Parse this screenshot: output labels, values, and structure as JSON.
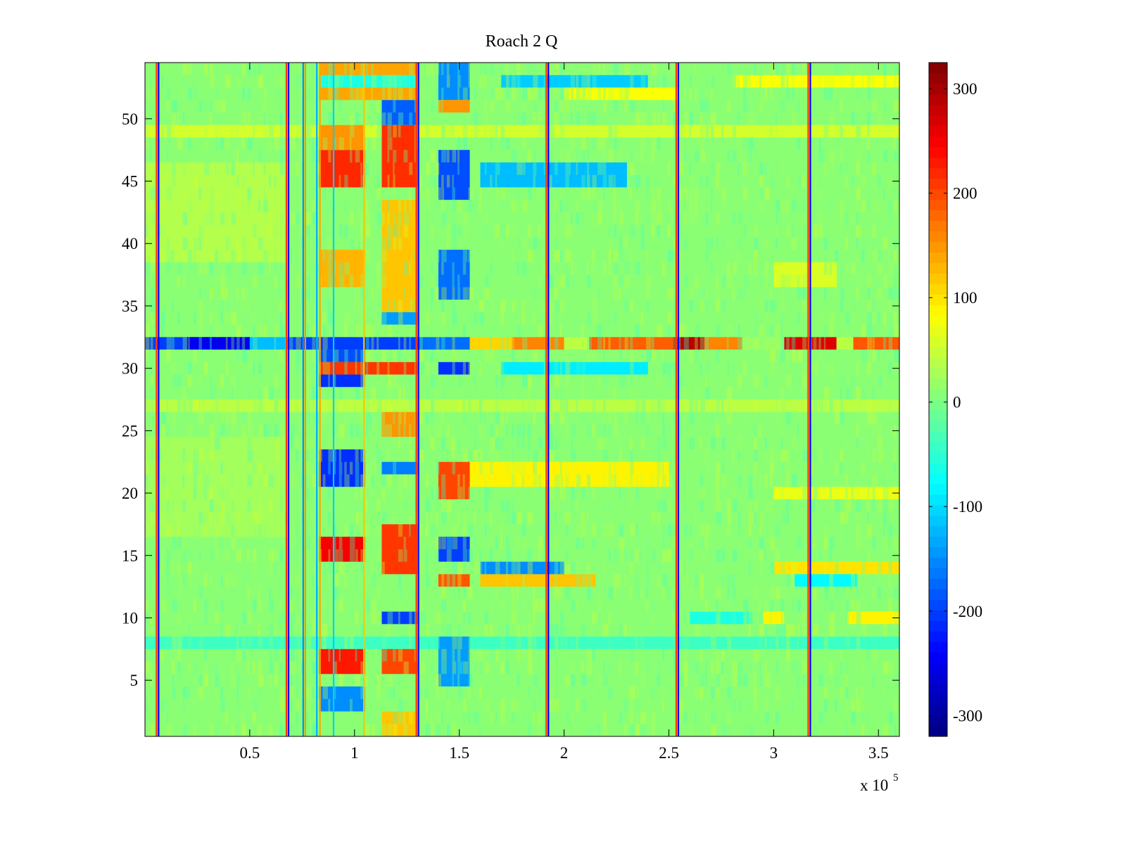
{
  "chart_data": {
    "type": "heatmap",
    "title": "Roach 2 Q",
    "xlabel": "",
    "ylabel": "",
    "x_exponent_label": "x 10",
    "x_exponent_power": "5",
    "xlim": [
      0,
      360000
    ],
    "ylim": [
      0.5,
      54.5
    ],
    "rows": 54,
    "x_ticks": [
      {
        "value": 50000,
        "label": "0.5"
      },
      {
        "value": 100000,
        "label": "1"
      },
      {
        "value": 150000,
        "label": "1.5"
      },
      {
        "value": 200000,
        "label": "2"
      },
      {
        "value": 250000,
        "label": "2.5"
      },
      {
        "value": 300000,
        "label": "3"
      },
      {
        "value": 350000,
        "label": "3.5"
      }
    ],
    "y_ticks": [
      {
        "value": 5,
        "label": "5"
      },
      {
        "value": 10,
        "label": "10"
      },
      {
        "value": 15,
        "label": "15"
      },
      {
        "value": 20,
        "label": "20"
      },
      {
        "value": 25,
        "label": "25"
      },
      {
        "value": 30,
        "label": "30"
      },
      {
        "value": 35,
        "label": "35"
      },
      {
        "value": 40,
        "label": "40"
      },
      {
        "value": 45,
        "label": "45"
      },
      {
        "value": 50,
        "label": "50"
      }
    ],
    "colorbar": {
      "colormap": "jet",
      "clim": [
        -320,
        325
      ],
      "ticks": [
        {
          "value": 300,
          "label": "300"
        },
        {
          "value": 200,
          "label": "200"
        },
        {
          "value": 100,
          "label": "100"
        },
        {
          "value": 0,
          "label": "0"
        },
        {
          "value": -100,
          "label": "-100"
        },
        {
          "value": -200,
          "label": "-200"
        },
        {
          "value": -300,
          "label": "-300"
        }
      ]
    },
    "background_value": 10,
    "rects": [
      {
        "x0": 0,
        "x1": 360000,
        "y0": 0.5,
        "y1": 54.5,
        "v": 10
      },
      {
        "x0": 0,
        "x1": 360000,
        "y0": 48.5,
        "y1": 49.5,
        "v": 55
      },
      {
        "x0": 0,
        "x1": 360000,
        "y0": 26.5,
        "y1": 27.5,
        "v": 40
      },
      {
        "x0": 0,
        "x1": 360000,
        "y0": 7.5,
        "y1": 8.5,
        "v": -40
      },
      {
        "x0": 0,
        "x1": 68000,
        "y0": 38.5,
        "y1": 46.5,
        "v": 35
      },
      {
        "x0": 0,
        "x1": 68000,
        "y0": 16.5,
        "y1": 24.5,
        "v": 25
      },
      {
        "x0": 0,
        "x1": 50000,
        "y0": 31.5,
        "y1": 32.5,
        "v": -200
      },
      {
        "x0": 20000,
        "x1": 50000,
        "y0": 31.5,
        "y1": 32.5,
        "v": -250
      },
      {
        "x0": 50000,
        "x1": 68000,
        "y0": 31.5,
        "y1": 32.5,
        "v": -120
      },
      {
        "x0": 68000,
        "x1": 130000,
        "y0": 31.5,
        "y1": 32.5,
        "v": -200
      },
      {
        "x0": 130000,
        "x1": 155000,
        "y0": 31.5,
        "y1": 32.5,
        "v": -170
      },
      {
        "x0": 155000,
        "x1": 175000,
        "y0": 31.5,
        "y1": 32.5,
        "v": 110
      },
      {
        "x0": 175000,
        "x1": 200000,
        "y0": 31.5,
        "y1": 32.5,
        "v": 160
      },
      {
        "x0": 200000,
        "x1": 212000,
        "y0": 31.5,
        "y1": 32.5,
        "v": 40
      },
      {
        "x0": 212000,
        "x1": 252000,
        "y0": 31.5,
        "y1": 32.5,
        "v": 185
      },
      {
        "x0": 252000,
        "x1": 267000,
        "y0": 31.5,
        "y1": 32.5,
        "v": 290
      },
      {
        "x0": 267000,
        "x1": 285000,
        "y0": 31.5,
        "y1": 32.5,
        "v": 160
      },
      {
        "x0": 285000,
        "x1": 305000,
        "y0": 31.5,
        "y1": 32.5,
        "v": 20
      },
      {
        "x0": 305000,
        "x1": 330000,
        "y0": 31.5,
        "y1": 32.5,
        "v": 265
      },
      {
        "x0": 330000,
        "x1": 338000,
        "y0": 31.5,
        "y1": 32.5,
        "v": 40
      },
      {
        "x0": 338000,
        "x1": 360000,
        "y0": 31.5,
        "y1": 32.5,
        "v": 190
      },
      {
        "x0": 83000,
        "x1": 105000,
        "y0": 44.5,
        "y1": 47.5,
        "v": 220
      },
      {
        "x0": 113000,
        "x1": 130000,
        "y0": 44.5,
        "y1": 49.5,
        "v": 215
      },
      {
        "x0": 83000,
        "x1": 105000,
        "y0": 47.5,
        "y1": 49.5,
        "v": 150
      },
      {
        "x0": 83000,
        "x1": 130000,
        "y0": 51.5,
        "y1": 54.5,
        "v": 140
      },
      {
        "x0": 113000,
        "x1": 130000,
        "y0": 49.5,
        "y1": 51.5,
        "v": -180
      },
      {
        "x0": 83000,
        "x1": 130000,
        "y0": 52.5,
        "y1": 53.5,
        "v": -60
      },
      {
        "x0": 83000,
        "x1": 105000,
        "y0": 36.5,
        "y1": 39.5,
        "v": 130
      },
      {
        "x0": 113000,
        "x1": 130000,
        "y0": 34.5,
        "y1": 43.5,
        "v": 120
      },
      {
        "x0": 113000,
        "x1": 130000,
        "y0": 33.5,
        "y1": 34.5,
        "v": -140
      },
      {
        "x0": 83000,
        "x1": 130000,
        "y0": 29.5,
        "y1": 30.5,
        "v": 210
      },
      {
        "x0": 83000,
        "x1": 105000,
        "y0": 28.5,
        "y1": 29.5,
        "v": -210
      },
      {
        "x0": 83000,
        "x1": 105000,
        "y0": 30.5,
        "y1": 31.5,
        "v": -190
      },
      {
        "x0": 113000,
        "x1": 130000,
        "y0": 24.5,
        "y1": 26.5,
        "v": 150
      },
      {
        "x0": 83000,
        "x1": 105000,
        "y0": 20.5,
        "y1": 23.5,
        "v": -210
      },
      {
        "x0": 113000,
        "x1": 130000,
        "y0": 21.5,
        "y1": 22.5,
        "v": -160
      },
      {
        "x0": 83000,
        "x1": 105000,
        "y0": 14.5,
        "y1": 16.5,
        "v": 250
      },
      {
        "x0": 113000,
        "x1": 130000,
        "y0": 13.5,
        "y1": 17.5,
        "v": 210
      },
      {
        "x0": 113000,
        "x1": 130000,
        "y0": 9.5,
        "y1": 10.5,
        "v": -200
      },
      {
        "x0": 83000,
        "x1": 105000,
        "y0": 5.5,
        "y1": 7.5,
        "v": 230
      },
      {
        "x0": 113000,
        "x1": 130000,
        "y0": 5.5,
        "y1": 7.5,
        "v": 200
      },
      {
        "x0": 83000,
        "x1": 105000,
        "y0": 2.5,
        "y1": 4.5,
        "v": -150
      },
      {
        "x0": 113000,
        "x1": 130000,
        "y0": 0.5,
        "y1": 2.5,
        "v": 120
      },
      {
        "x0": 140000,
        "x1": 155000,
        "y0": 51.5,
        "y1": 54.5,
        "v": -150
      },
      {
        "x0": 140000,
        "x1": 155000,
        "y0": 50.5,
        "y1": 51.5,
        "v": 150
      },
      {
        "x0": 140000,
        "x1": 155000,
        "y0": 43.5,
        "y1": 47.5,
        "v": -190
      },
      {
        "x0": 140000,
        "x1": 155000,
        "y0": 35.5,
        "y1": 39.5,
        "v": -170
      },
      {
        "x0": 140000,
        "x1": 155000,
        "y0": 29.5,
        "y1": 30.5,
        "v": -210
      },
      {
        "x0": 140000,
        "x1": 155000,
        "y0": 19.5,
        "y1": 22.5,
        "v": 200
      },
      {
        "x0": 140000,
        "x1": 155000,
        "y0": 14.5,
        "y1": 16.5,
        "v": -200
      },
      {
        "x0": 140000,
        "x1": 155000,
        "y0": 12.5,
        "y1": 13.5,
        "v": 190
      },
      {
        "x0": 140000,
        "x1": 155000,
        "y0": 4.5,
        "y1": 8.5,
        "v": -140
      },
      {
        "x0": 155000,
        "x1": 250000,
        "y0": 20.5,
        "y1": 22.5,
        "v": 90
      },
      {
        "x0": 160000,
        "x1": 215000,
        "y0": 12.5,
        "y1": 13.5,
        "v": 120
      },
      {
        "x0": 160000,
        "x1": 200000,
        "y0": 13.5,
        "y1": 14.5,
        "v": -150
      },
      {
        "x0": 160000,
        "x1": 230000,
        "y0": 44.5,
        "y1": 46.5,
        "v": -120
      },
      {
        "x0": 170000,
        "x1": 240000,
        "y0": 29.5,
        "y1": 30.5,
        "v": -90
      },
      {
        "x0": 170000,
        "x1": 240000,
        "y0": 52.5,
        "y1": 53.5,
        "v": -110
      },
      {
        "x0": 200000,
        "x1": 255000,
        "y0": 51.5,
        "y1": 52.5,
        "v": 80
      },
      {
        "x0": 282000,
        "x1": 360000,
        "y0": 52.5,
        "y1": 53.5,
        "v": 80
      },
      {
        "x0": 300000,
        "x1": 360000,
        "y0": 13.5,
        "y1": 14.5,
        "v": 100
      },
      {
        "x0": 310000,
        "x1": 340000,
        "y0": 12.5,
        "y1": 13.5,
        "v": -80
      },
      {
        "x0": 300000,
        "x1": 360000,
        "y0": 19.5,
        "y1": 20.5,
        "v": 70
      },
      {
        "x0": 335000,
        "x1": 360000,
        "y0": 9.5,
        "y1": 10.5,
        "v": 90
      },
      {
        "x0": 295000,
        "x1": 305000,
        "y0": 9.5,
        "y1": 10.5,
        "v": 90
      },
      {
        "x0": 260000,
        "x1": 290000,
        "y0": 9.5,
        "y1": 10.5,
        "v": -60
      },
      {
        "x0": 300000,
        "x1": 330000,
        "y0": 36.5,
        "y1": 38.5,
        "v": 60
      }
    ],
    "vertical_lines": [
      {
        "x": 5500,
        "v": 210
      },
      {
        "x": 6500,
        "v": -240
      },
      {
        "x": 67500,
        "v": 210
      },
      {
        "x": 68500,
        "v": -240
      },
      {
        "x": 129500,
        "v": 210
      },
      {
        "x": 130500,
        "v": -240
      },
      {
        "x": 191500,
        "v": 210
      },
      {
        "x": 192500,
        "v": -240
      },
      {
        "x": 253500,
        "v": 210
      },
      {
        "x": 254500,
        "v": -240
      },
      {
        "x": 316500,
        "v": 210
      },
      {
        "x": 317500,
        "v": -240
      },
      {
        "x": 75500,
        "v": -150
      },
      {
        "x": 76500,
        "v": 150
      },
      {
        "x": 82000,
        "v": -130
      },
      {
        "x": 83500,
        "v": 140
      },
      {
        "x": 90000,
        "v": -110
      },
      {
        "x": 104500,
        "v": 120
      }
    ]
  }
}
